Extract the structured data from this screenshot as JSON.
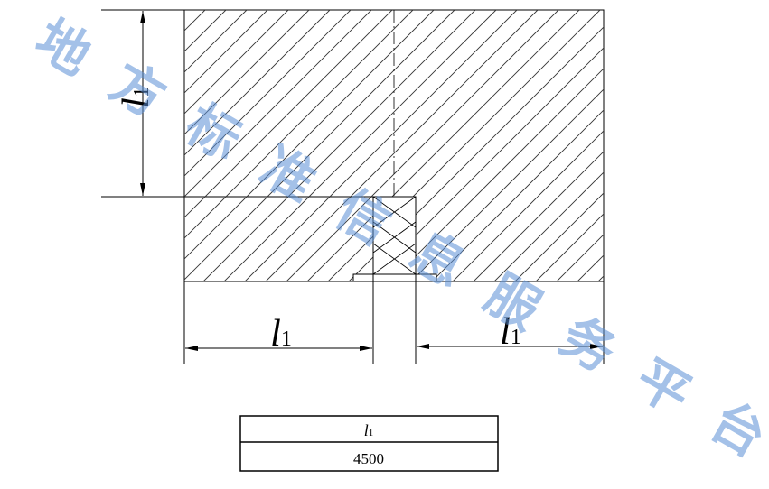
{
  "dimension_labels": {
    "vertical": {
      "main": "l",
      "sub": "1"
    },
    "bottom_left": {
      "main": "l",
      "sub": "1"
    },
    "bottom_right": {
      "main": "l",
      "sub": "1"
    }
  },
  "table": {
    "header": {
      "main": "l",
      "sub": "1"
    },
    "value": "4500"
  },
  "watermark": {
    "chars": [
      "地",
      "方",
      "标",
      "准",
      "信",
      "息",
      "服",
      "务",
      "平",
      "台"
    ],
    "color": "#5a8fd6"
  },
  "colors": {
    "line": "#000000",
    "hatch": "#333333",
    "background": "#ffffff"
  }
}
